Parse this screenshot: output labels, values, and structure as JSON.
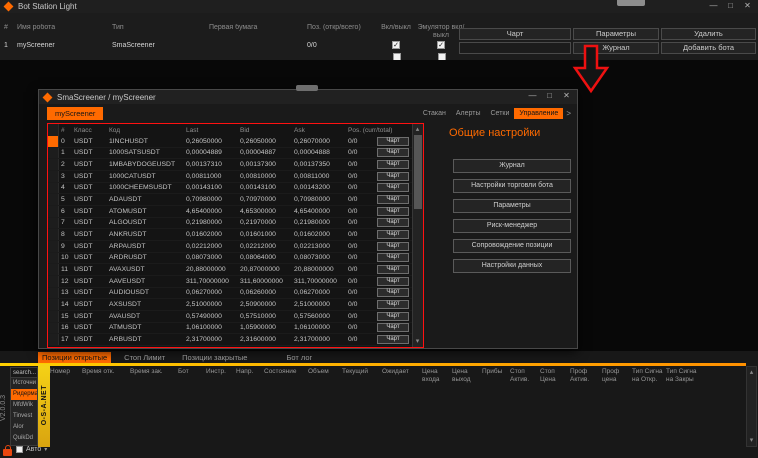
{
  "accent": "#ff6a00",
  "icons": {
    "check": "✓",
    "caret": "▾",
    "up": "▴",
    "down": "▾",
    "more": ">"
  },
  "main_window": {
    "title": "Bot Station Light",
    "controls": {
      "minimize": "—",
      "maximize": "□",
      "close": "✕"
    },
    "bots_table": {
      "headers": [
        "#",
        "Имя робота",
        "Тип",
        "Первая бумага",
        "Поз. (откр/всего)",
        "Вкл/выкл",
        "Эмулятор вкл/выкл"
      ],
      "rows": [
        {
          "num": "1",
          "name": "myScreener",
          "type": "SmaScreener",
          "first_paper": "",
          "pos": "0/0",
          "enabled": true,
          "emulator": true
        }
      ]
    },
    "action_buttons": {
      "chart": "Чарт",
      "params": "Параметры",
      "delete": "Удалить",
      "journal": "Журнал",
      "add_bot": "Добавить бота"
    },
    "bottom_panel": {
      "tabs": [
        {
          "label": "Позиции открытые",
          "active": true
        },
        {
          "label": "Стоп Лимит",
          "active": false
        },
        {
          "label": "Позиции закрытые",
          "active": false
        },
        {
          "label": "Бот лог",
          "active": false
        }
      ],
      "columns": [
        "Номер",
        "Время отк.",
        "Время зак.",
        "Бот",
        "Инстр.",
        "Напр.",
        "Состояние",
        "Объем",
        "Текущий",
        "Ожидает",
        "Цена входа",
        "Цена выход",
        "Прибы",
        "Стоп Актив.",
        "Стоп Цена",
        "Проф Актив.",
        "Проф цена",
        "Тип Сигна на Откр.",
        "Тип Сигна на Закры"
      ]
    }
  },
  "child_window": {
    "title": "SmaScreener / myScreener",
    "controls": {
      "minimize": "—",
      "maximize": "□",
      "close": "✕"
    },
    "bot_tab": "myScreener",
    "nav_tabs": [
      {
        "label": "Стакан",
        "active": false
      },
      {
        "label": "Алерты",
        "active": false
      },
      {
        "label": "Сетки",
        "active": false
      },
      {
        "label": "Управление",
        "active": true
      }
    ],
    "section_title": "Общие настройки",
    "settings_buttons": [
      "Журнал",
      "Настройки торговли бота",
      "Параметры",
      "Риск-менеджер",
      "Сопровождение позиции",
      "Настройки данных"
    ],
    "screener_table": {
      "headers": [
        "#",
        "Класс",
        "Код",
        "Last",
        "Bid",
        "Ask",
        "Pos. (curr/total)"
      ],
      "chart_label": "Чарт",
      "rows": [
        [
          "0",
          "USDT",
          "1INCHUSDT",
          "0,26050000",
          "0,26050000",
          "0,26070000",
          "0/0"
        ],
        [
          "1",
          "USDT",
          "1000SATSUSDT",
          "0,00004889",
          "0,00004887",
          "0,00004888",
          "0/0"
        ],
        [
          "2",
          "USDT",
          "1MBABYDOGEUSDT",
          "0,00137310",
          "0,00137300",
          "0,00137350",
          "0/0"
        ],
        [
          "3",
          "USDT",
          "1000CATUSDT",
          "0,00811000",
          "0,00810000",
          "0,00811000",
          "0/0"
        ],
        [
          "4",
          "USDT",
          "1000CHEEMSUSDT",
          "0,00143100",
          "0,00143100",
          "0,00143200",
          "0/0"
        ],
        [
          "5",
          "USDT",
          "ADAUSDT",
          "0,70980000",
          "0,70970000",
          "0,70980000",
          "0/0"
        ],
        [
          "6",
          "USDT",
          "ATOMUSDT",
          "4,65400000",
          "4,65300000",
          "4,65400000",
          "0/0"
        ],
        [
          "7",
          "USDT",
          "ALGOUSDT",
          "0,21980000",
          "0,21970000",
          "0,21980000",
          "0/0"
        ],
        [
          "8",
          "USDT",
          "ANKRUSDT",
          "0,01602000",
          "0,01601000",
          "0,01602000",
          "0/0"
        ],
        [
          "9",
          "USDT",
          "ARPAUSDT",
          "0,02212000",
          "0,02212000",
          "0,02213000",
          "0/0"
        ],
        [
          "10",
          "USDT",
          "ARDRUSDT",
          "0,08073000",
          "0,08064000",
          "0,08073000",
          "0/0"
        ],
        [
          "11",
          "USDT",
          "AVAXUSDT",
          "20,88000000",
          "20,87000000",
          "20,88000000",
          "0/0"
        ],
        [
          "12",
          "USDT",
          "AAVEUSDT",
          "311,70000000",
          "311,60000000",
          "311,70000000",
          "0/0"
        ],
        [
          "13",
          "USDT",
          "AUDIOUSDT",
          "0,06270000",
          "0,06260000",
          "0,06270000",
          "0/0"
        ],
        [
          "14",
          "USDT",
          "AXSUSDT",
          "2,51000000",
          "2,50900000",
          "2,51000000",
          "0/0"
        ],
        [
          "15",
          "USDT",
          "AVAUSDT",
          "0,57490000",
          "0,57510000",
          "0,57560000",
          "0/0"
        ],
        [
          "16",
          "USDT",
          "ATMUSDT",
          "1,06100000",
          "1,05900000",
          "1,06100000",
          "0/0"
        ],
        [
          "17",
          "USDT",
          "ARBUSDT",
          "2,31700000",
          "2,31600000",
          "2,31700000",
          "0/0"
        ]
      ]
    }
  },
  "sidebar": {
    "version": "V2.0.0.3",
    "brand": "O-S-A.NET",
    "search_placeholder": "search...",
    "sources": [
      {
        "label": "Источни",
        "active": false
      },
      {
        "label": "Ридерма",
        "active": true
      },
      {
        "label": "MfdWik",
        "active": false
      },
      {
        "label": "Tinvest",
        "active": false
      },
      {
        "label": "Alor",
        "active": false
      },
      {
        "label": "QuikDd",
        "active": false
      }
    ],
    "auto_label": "Авто"
  }
}
